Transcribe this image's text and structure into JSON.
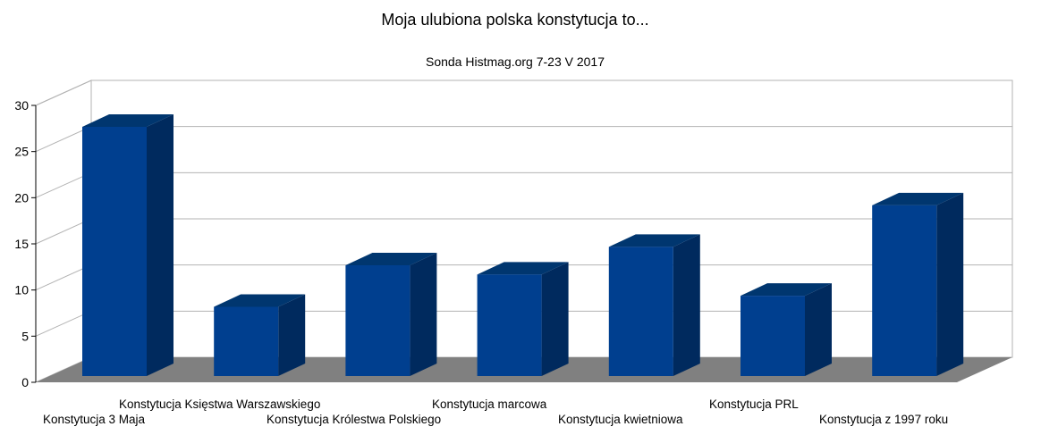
{
  "chart_data": {
    "type": "bar",
    "title": "Moja ulubiona polska konstytucja to...",
    "subtitle": "Sonda Histmag.org 7-23 V 2017",
    "categories": [
      "Konstytucja 3 Maja",
      "Konstytucja Księstwa Warszawskiego",
      "Konstytucja Królestwa Polskiego",
      "Konstytucja marcowa",
      "Konstytucja kwietniowa",
      "Konstytucja PRL",
      "Konstytucja z 1997 roku"
    ],
    "values": [
      27,
      7.5,
      12,
      11,
      14,
      8.7,
      18.5
    ],
    "yticks": [
      0,
      5,
      10,
      15,
      20,
      25,
      30
    ],
    "ylim": [
      0,
      30
    ],
    "xlabel": "",
    "ylabel": "",
    "grid": true,
    "legend": "none",
    "colors": {
      "bar_front": "#003f8f",
      "bar_side": "#002a5e",
      "bar_top": "#00366f",
      "floor": "#808080",
      "grid": "#b3b3b3",
      "wall": "#ffffff"
    }
  }
}
